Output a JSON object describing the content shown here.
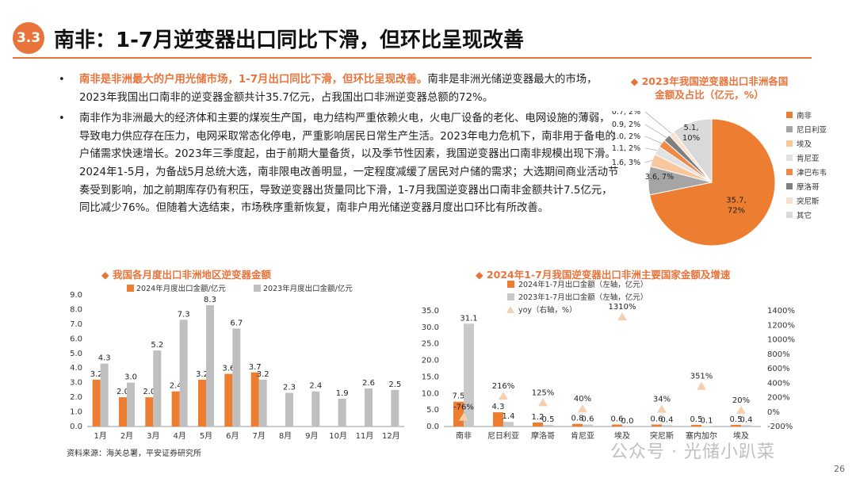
{
  "header": {
    "badge": "3.3",
    "title": "南非：1-7月逆变器出口同比下滑，但环比呈现改善"
  },
  "bullets": [
    {
      "highlight": "南非是非洲最大的户用光储市场，1-7月出口同比下滑，但环比呈现改善。",
      "text": "南非是非洲光储逆变器最大的市场，2023年我国出口南非的逆变器金额共计35.7亿元，占我国出口非洲逆变器总额的72%。"
    },
    {
      "highlight": "",
      "text": "南非作为非洲最大的经济体和主要的煤炭生产国，电力结构严重依赖火电，火电厂设备的老化、电网设施的薄弱，导致电力供应存在压力，电网采取常态化停电，严重影响居民日常生产生活。2023年电力危机下，南非用于备电的户储需求快速增长。2023年三季度起，由于前期大量备货，以及季节性因素，我国逆变器出口南非规模出现下滑。2024年1-5月，为备战5月总统大选，南非限电改善明显，一定程度减缓了居民对户储的需求；大选期间商业活动节奏受到影响，加之前期库存仍有积压，导致逆变器出货量同比下滑，1-7月我国逆变器出口南非金额共计7.5亿元，同比减少76%。但随着大选结束，市场秩序重新恢复，南非户用光储逆变器月度出口环比有所改善。"
    }
  ],
  "pie": {
    "title": "2023年我国逆变器出口非洲各国金额及占比（亿元，%）"
  },
  "bar1": {
    "title": "我国各月度出口非洲地区逆变器金额"
  },
  "bar2": {
    "title": "2024年1-7月我国逆变器出口非洲主要国家金额及增速"
  },
  "footer": {
    "source": "资料来源：海关总署，平安证券研究所",
    "page": "26",
    "watermark": "公众号 · 光储小趴菜"
  },
  "colors": {
    "accent": "#e8743b",
    "gray": "#c0c0c0"
  },
  "chart_data": [
    {
      "type": "pie",
      "title": "2023年我国逆变器出口非洲各国金额及占比（亿元，%）",
      "legend_position": "right",
      "slices": [
        {
          "name": "南非",
          "value": 35.7,
          "label": "35.7, 72%",
          "color": "#ed7d31"
        },
        {
          "name": "尼日利亚",
          "value": 3.6,
          "label": "3.6, 7%",
          "color": "#a5a5a5"
        },
        {
          "name": "埃及",
          "value": 1.6,
          "label": "1.6, 3%",
          "color": "#f9c79e"
        },
        {
          "name": "肯尼亚",
          "value": 1.1,
          "label": "1.1, 2%",
          "color": "#e2e2e2"
        },
        {
          "name": "津巴布韦",
          "value": 1.0,
          "label": "1.0, 2%",
          "color": "#f08a4b"
        },
        {
          "name": "摩洛哥",
          "value": 0.9,
          "label": "0.9, 2%",
          "color": "#7f7f7f"
        },
        {
          "name": "突尼斯",
          "value": 0.7,
          "label": "0.7, 2%",
          "color": "#fbe0cc"
        },
        {
          "name": "其它",
          "value": 5.1,
          "label": "5.1, 10%",
          "color": "#d9d9d9"
        }
      ]
    },
    {
      "type": "bar",
      "title": "我国各月度出口非洲地区逆变器金额",
      "categories": [
        "1月",
        "2月",
        "3月",
        "4月",
        "5月",
        "6月",
        "7月",
        "8月",
        "9月",
        "10月",
        "11月",
        "12月"
      ],
      "ylim": [
        0,
        9
      ],
      "yticks": [
        "0.0",
        "1.0",
        "2.0",
        "3.0",
        "4.0",
        "5.0",
        "6.0",
        "7.0",
        "8.0",
        "9.0"
      ],
      "legend_position": "top",
      "series": [
        {
          "name": "2024年月度出口金额/亿元",
          "color": "#ed7d31",
          "values": [
            3.2,
            2.0,
            2.0,
            2.4,
            3.2,
            3.6,
            3.7,
            null,
            null,
            null,
            null,
            null
          ],
          "labels": [
            "3.2",
            "2.0",
            "2.0",
            "2.4",
            "3.2",
            "3.6",
            "3.7",
            "",
            "",
            "",
            "",
            ""
          ]
        },
        {
          "name": "2023年月度出口金额/亿元",
          "color": "#bfbfbf",
          "values": [
            4.3,
            3.0,
            5.2,
            7.3,
            8.3,
            6.7,
            3.2,
            2.3,
            2.4,
            1.9,
            2.6,
            2.5
          ],
          "labels": [
            "4.3",
            "3.0",
            "5.2",
            "7.3",
            "8.3",
            "6.7",
            "3.2",
            "2.3",
            "2.4",
            "1.9",
            "2.6",
            "2.5"
          ]
        }
      ]
    },
    {
      "type": "bar",
      "title": "2024年1-7月我国逆变器出口非洲主要国家金额及增速",
      "categories": [
        "南非",
        "尼日利亚",
        "摩洛哥",
        "肯尼亚",
        "埃及",
        "突尼斯",
        "塞内加尔",
        "埃及"
      ],
      "ylim": [
        0,
        35
      ],
      "yticks": [
        "0.0",
        "5.0",
        "10.0",
        "15.0",
        "20.0",
        "25.0",
        "30.0",
        "35.0"
      ],
      "y2lim": [
        -200,
        1400
      ],
      "y2ticks": [
        "-200%",
        "0%",
        "200%",
        "400%",
        "600%",
        "800%",
        "1000%",
        "1200%",
        "1400%"
      ],
      "legend_position": "top",
      "series": [
        {
          "name": "2024年1-7月出口金额（左轴，亿元）",
          "color": "#ed7d31",
          "values": [
            7.5,
            4.3,
            1.2,
            0.8,
            0.6,
            0.6,
            0.5,
            0.5
          ],
          "labels": [
            "7.5",
            "4.3",
            "1.2",
            "0.8",
            "0.6",
            "0.6",
            "0.5",
            "0.5"
          ]
        },
        {
          "name": "2023年1-7月出口金额（左轴，亿元）",
          "color": "#c9c9c9",
          "values": [
            31.1,
            1.4,
            0.5,
            0.6,
            0.0,
            0.4,
            0.1,
            0.4
          ],
          "labels": [
            "31.1",
            "1.4",
            "0.5",
            "0.6",
            "0.0",
            "0.4",
            "0.1",
            "0.4"
          ]
        },
        {
          "name": "yoy（右轴，%）",
          "color": "#f6cfae",
          "type": "scatter",
          "axis": "right",
          "values": [
            -76,
            216,
            125,
            40,
            1310,
            34,
            351,
            20
          ],
          "labels": [
            "-76%",
            "216%",
            "125%",
            "40%",
            "1310%",
            "34%",
            "351%",
            "20%"
          ]
        }
      ]
    }
  ]
}
